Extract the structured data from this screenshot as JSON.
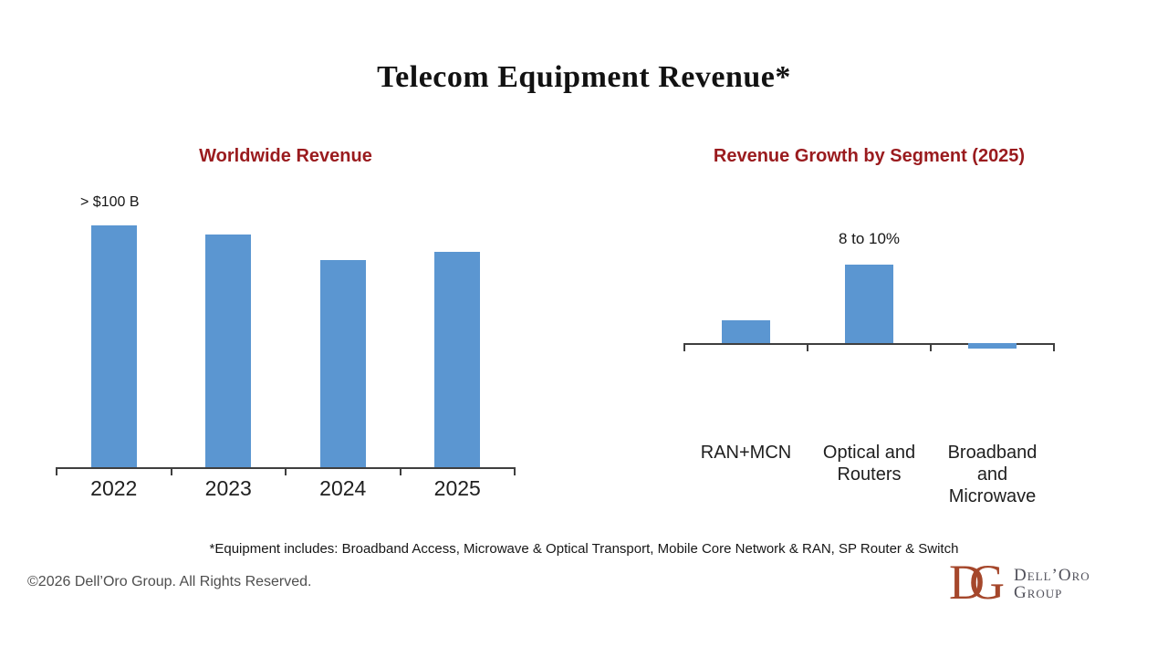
{
  "page": {
    "title": "Telecom Equipment Revenue*",
    "footnote": "*Equipment includes: Broadband Access, Microwave & Optical Transport, Mobile Core Network & RAN, SP Router & Switch",
    "copyright": "©2026 Dell’Oro Group. All Rights Reserved."
  },
  "logo": {
    "monogram_d": "D",
    "monogram_g": "G",
    "name_line1": "Dell’Oro",
    "name_line2": "Group"
  },
  "colors": {
    "bar_blue": "#5B96D1",
    "heading_red": "#9A1B1E",
    "axis_gray": "#3F3F3F",
    "logo_rust": "#A5472B",
    "logo_text_gray": "#50505A"
  },
  "chart_data": [
    {
      "id": "worldwide-revenue",
      "type": "bar",
      "title": "Worldwide Revenue",
      "categories": [
        "2022",
        "2023",
        "2024",
        "2025"
      ],
      "values": [
        105,
        101,
        90,
        93.5
      ],
      "units": "USD billions (estimated; y-axis unlabeled)",
      "annotation": {
        "text": "> $100 B",
        "target_category": "2022"
      },
      "ylim": [
        0,
        108
      ],
      "grid": false,
      "legend": false,
      "bar_color": "#5B96D1"
    },
    {
      "id": "revenue-growth-by-segment-2025",
      "type": "bar",
      "title": "Revenue Growth by Segment (2025)",
      "categories": [
        "RAN+MCN",
        "Optical and\nRouters",
        "Broadband\nand\nMicrowave"
      ],
      "values": [
        2.6,
        9,
        -0.6
      ],
      "units": "percent growth (estimated; y-axis unlabeled)",
      "annotation": {
        "text": "8 to 10%",
        "target_category": "Optical and Routers"
      },
      "ylim": [
        -1,
        9.4
      ],
      "grid": false,
      "legend": false,
      "bar_color": "#5B96D1"
    }
  ]
}
